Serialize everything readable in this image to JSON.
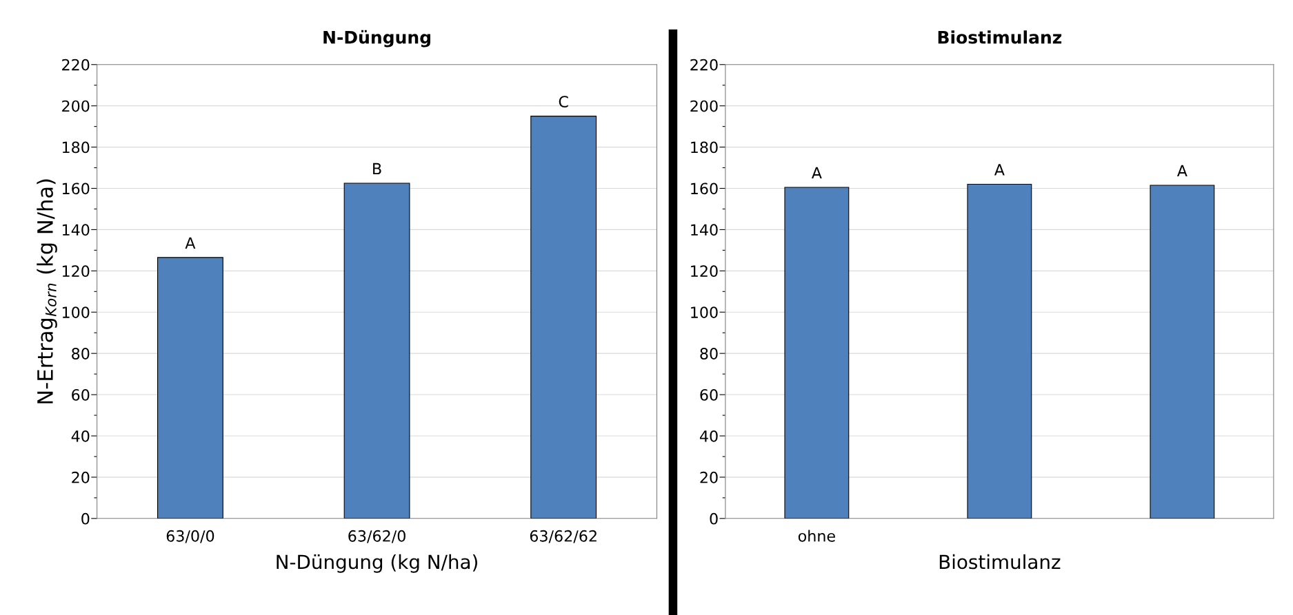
{
  "chart_data": [
    {
      "type": "bar",
      "title": "N-Düngung",
      "xlabel": "N-Düngung (kg N/ha)",
      "ylabel": "N-Ertrag$_{Korn}$ (kg N/ha)",
      "categories": [
        "63/0/0",
        "63/62/0",
        "63/62/62"
      ],
      "values": [
        126.5,
        162.5,
        195
      ],
      "color": "#4f81bd",
      "ylim": [
        0,
        220
      ],
      "yticks": [
        0,
        {
          "value": 10,
          "label": null
        },
        20,
        {
          "value": 30,
          "label": null
        },
        40,
        {
          "value": 50,
          "label": null
        },
        60,
        {
          "value": 70,
          "label": null
        },
        80,
        {
          "value": 90,
          "label": null
        },
        100,
        {
          "value": 110,
          "label": null
        },
        120,
        {
          "value": 130,
          "label": null
        },
        140,
        {
          "value": 150,
          "label": null
        },
        160,
        {
          "value": 170,
          "label": null
        },
        180,
        {
          "value": 190,
          "label": null
        },
        200,
        {
          "value": 210,
          "label": null
        },
        220
      ],
      "grid": "y",
      "annotations": [
        {
          "text": "A",
          "x": "63/0/0",
          "y": 126.5
        },
        {
          "text": "B",
          "x": "63/62/0",
          "y": 162.5
        },
        {
          "text": "C",
          "x": "63/62/62",
          "y": 195
        }
      ]
    },
    {
      "type": "bar",
      "title": "Biostimulanz",
      "xlabel": "Biostimulanz",
      "categories": [
        "ohne",
        null,
        null
      ],
      "values": [
        160.5,
        162,
        161.5
      ],
      "color": "#4f81bd",
      "ylim": [
        0,
        220
      ],
      "yticks": [
        0,
        {
          "value": 10,
          "label": null
        },
        20,
        {
          "value": 30,
          "label": null
        },
        40,
        {
          "value": 50,
          "label": null
        },
        60,
        {
          "value": 70,
          "label": null
        },
        80,
        {
          "value": 90,
          "label": null
        },
        100,
        {
          "value": 110,
          "label": null
        },
        120,
        {
          "value": 130,
          "label": null
        },
        140,
        {
          "value": 150,
          "label": null
        },
        160,
        {
          "value": 170,
          "label": null
        },
        180,
        {
          "value": 190,
          "label": null
        },
        200,
        {
          "value": 210,
          "label": null
        },
        220
      ],
      "grid": "y",
      "annotations": [
        {
          "text": "A",
          "x": "ohne",
          "y": 160.5
        },
        {
          "text": "A",
          "y": 162
        },
        {
          "text": "A",
          "y": 161.5
        }
      ]
    }
  ]
}
